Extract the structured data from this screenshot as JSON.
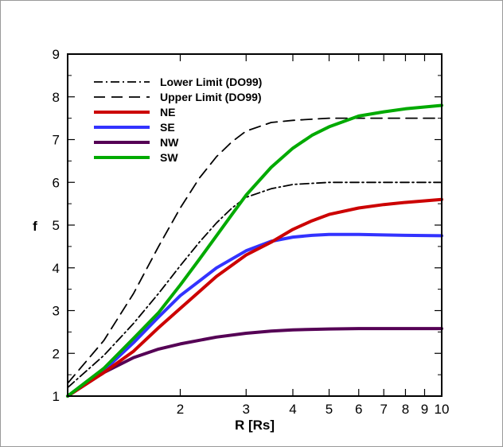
{
  "chart_data": {
    "type": "line",
    "title": "",
    "xlabel": "R [Rs]",
    "ylabel": "f",
    "xscale": "log",
    "xlim": [
      1,
      10
    ],
    "ylim": [
      1,
      9
    ],
    "x_ticks": [
      2,
      3,
      4,
      5,
      6,
      7,
      8,
      9,
      10
    ],
    "y_ticks": [
      1,
      2,
      3,
      4,
      5,
      6,
      7,
      8,
      9
    ],
    "legend_position": "top-left",
    "series": [
      {
        "name": "Lower Limit (DO99)",
        "style": "dashdot",
        "color": "#000000",
        "x": [
          1.0,
          1.25,
          1.5,
          1.75,
          2.0,
          2.25,
          2.5,
          2.75,
          3.0,
          3.5,
          4.0,
          5.0,
          6.0,
          7.0,
          8.0,
          10.0
        ],
        "y": [
          1.2,
          1.95,
          2.7,
          3.4,
          4.05,
          4.6,
          5.05,
          5.4,
          5.65,
          5.85,
          5.95,
          6.0,
          6.0,
          6.0,
          6.0,
          6.0
        ]
      },
      {
        "name": "Upper Limit (DO99)",
        "style": "dashed",
        "color": "#000000",
        "x": [
          1.0,
          1.25,
          1.5,
          1.75,
          2.0,
          2.25,
          2.5,
          2.75,
          3.0,
          3.5,
          4.0,
          5.0,
          6.0,
          7.0,
          8.0,
          10.0
        ],
        "y": [
          1.3,
          2.3,
          3.4,
          4.5,
          5.4,
          6.1,
          6.6,
          6.95,
          7.2,
          7.4,
          7.45,
          7.5,
          7.5,
          7.5,
          7.5,
          7.5
        ]
      },
      {
        "name": "NE",
        "style": "solid",
        "color": "#cc0000",
        "x": [
          1.0,
          1.25,
          1.5,
          1.75,
          2.0,
          2.5,
          3.0,
          3.5,
          4.0,
          4.5,
          5.0,
          6.0,
          7.0,
          8.0,
          10.0
        ],
        "y": [
          1.0,
          1.55,
          2.05,
          2.6,
          3.05,
          3.8,
          4.3,
          4.6,
          4.9,
          5.1,
          5.25,
          5.4,
          5.48,
          5.53,
          5.6
        ]
      },
      {
        "name": "SE",
        "style": "solid",
        "color": "#3333ff",
        "x": [
          1.0,
          1.25,
          1.5,
          1.75,
          2.0,
          2.5,
          3.0,
          3.5,
          4.0,
          4.5,
          5.0,
          6.0,
          7.0,
          8.0,
          10.0
        ],
        "y": [
          1.0,
          1.6,
          2.25,
          2.85,
          3.35,
          4.0,
          4.4,
          4.62,
          4.72,
          4.76,
          4.78,
          4.78,
          4.77,
          4.76,
          4.75
        ]
      },
      {
        "name": "NW",
        "style": "solid",
        "color": "#550055",
        "x": [
          1.0,
          1.25,
          1.5,
          1.75,
          2.0,
          2.5,
          3.0,
          3.5,
          4.0,
          5.0,
          6.0,
          7.0,
          8.0,
          10.0
        ],
        "y": [
          1.0,
          1.55,
          1.9,
          2.1,
          2.22,
          2.38,
          2.47,
          2.52,
          2.55,
          2.57,
          2.58,
          2.58,
          2.58,
          2.58
        ]
      },
      {
        "name": "SW",
        "style": "solid",
        "color": "#00aa00",
        "x": [
          1.0,
          1.25,
          1.5,
          1.75,
          2.0,
          2.25,
          2.5,
          2.75,
          3.0,
          3.5,
          4.0,
          4.5,
          5.0,
          6.0,
          7.0,
          8.0,
          10.0
        ],
        "y": [
          1.0,
          1.65,
          2.35,
          2.95,
          3.6,
          4.2,
          4.75,
          5.25,
          5.7,
          6.35,
          6.8,
          7.1,
          7.3,
          7.55,
          7.65,
          7.72,
          7.8
        ]
      }
    ]
  }
}
